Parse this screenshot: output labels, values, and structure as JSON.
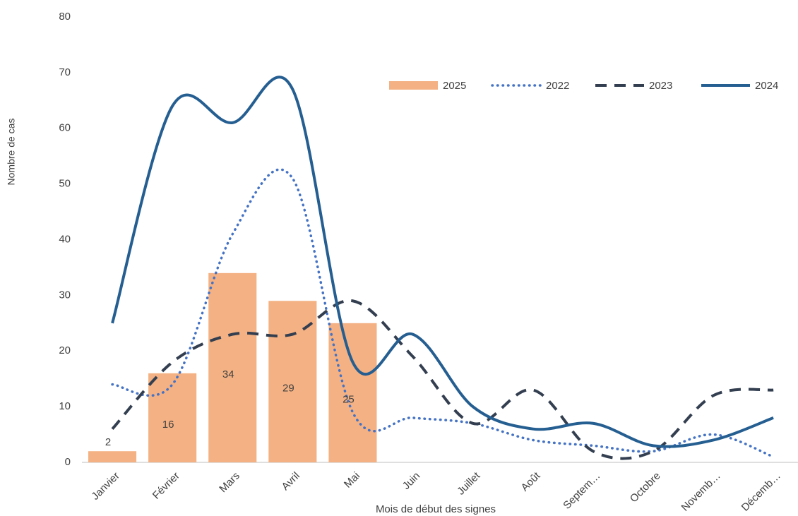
{
  "chart_data": {
    "type": "bar-line",
    "x_label": "Mois de début des signes",
    "y_label": "Nombre de cas",
    "categories": [
      "Janvier",
      "Février",
      "Mars",
      "Avril",
      "Mai",
      "Juin",
      "Juillet",
      "Août",
      "Septem…",
      "Octobre",
      "Novemb…",
      "Décemb…"
    ],
    "series": [
      {
        "name": "2025",
        "type": "bar",
        "color": "#f4b183",
        "values": [
          2,
          16,
          34,
          29,
          25,
          null,
          null,
          null,
          null,
          null,
          null,
          null
        ]
      },
      {
        "name": "2022",
        "type": "line",
        "style": "dotted",
        "color": "#4472c4",
        "values": [
          14,
          14,
          41,
          51,
          9,
          8,
          7,
          4,
          3,
          2,
          5,
          1
        ]
      },
      {
        "name": "2023",
        "type": "line",
        "style": "dashed",
        "color": "#333f50",
        "values": [
          6,
          18,
          23,
          23,
          29,
          19,
          7,
          13,
          2,
          2,
          12,
          13
        ]
      },
      {
        "name": "2024",
        "type": "line",
        "style": "solid",
        "color": "#255e91",
        "values": [
          25,
          64,
          61,
          67,
          18,
          23,
          10,
          6,
          7,
          3,
          4,
          8
        ]
      }
    ],
    "ylim": [
      0,
      80
    ],
    "yticks": [
      0,
      10,
      20,
      30,
      40,
      50,
      60,
      70,
      80
    ],
    "grid": false,
    "legend": "upper right",
    "smooth": true
  }
}
